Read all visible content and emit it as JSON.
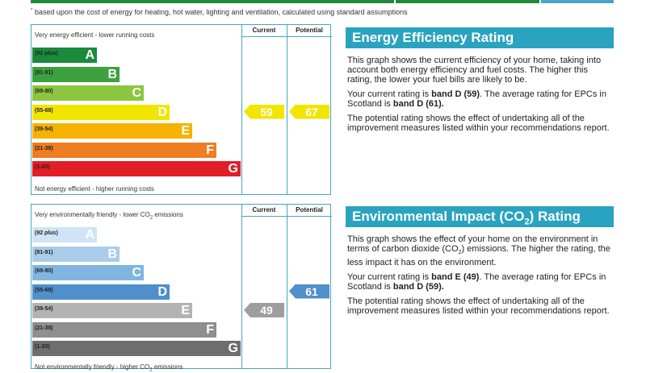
{
  "colors": {
    "accent": "#2aa3c0",
    "border": "#4aa3c8",
    "topbar": [
      "#1e8a3a",
      "#1e8a3a",
      "#4aa3c8"
    ]
  },
  "footnote": "based upon the cost of energy for heating, hot water, lighting and ventilation, calculated using standard assumptions",
  "footnote_mark": "*",
  "chart_data": [
    {
      "type": "bar",
      "title": "",
      "top_label": "Very energy efficient - lower running costs",
      "bottom_label": "Not energy efficient - higher running costs",
      "col_headers": [
        "Current",
        "Potential"
      ],
      "categories": [
        "A",
        "B",
        "C",
        "D",
        "E",
        "F",
        "G"
      ],
      "ranges": [
        "(92 plus)",
        "(81-91)",
        "(69-80)",
        "(55-68)",
        "(39-54)",
        "(21-38)",
        "(1-20)"
      ],
      "band_colors": [
        "#1a8a3c",
        "#3ca040",
        "#8cc63e",
        "#f2e500",
        "#f7b200",
        "#ef7d22",
        "#e21e26"
      ],
      "current": 59,
      "potential": 67,
      "current_color": "#f2e500",
      "potential_color": "#f2e500"
    },
    {
      "type": "bar",
      "title": "",
      "top_label": "Very environmentally friendly - lower CO",
      "top_label_suffix": "emissions",
      "bottom_label": "Not environmentally friendly - higher CO",
      "bottom_label_suffix": "emissions",
      "col_headers": [
        "Current",
        "Potential"
      ],
      "categories": [
        "A",
        "B",
        "C",
        "D",
        "E",
        "F",
        "G"
      ],
      "ranges": [
        "(92 plus)",
        "(81-91)",
        "(69-80)",
        "(55-68)",
        "(39-54)",
        "(21-38)",
        "(1-20)"
      ],
      "band_colors": [
        "#cfe4f4",
        "#a9cdea",
        "#7fb5e0",
        "#4f8fcb",
        "#b3b3b3",
        "#8f8f8f",
        "#6e6e6e"
      ],
      "current": 49,
      "potential": 61,
      "current_color": "#9e9e9e",
      "potential_color": "#4f8fcb"
    }
  ],
  "energy": {
    "header": "Energy Efficiency Rating",
    "p1": "This graph shows the current efficiency of your home, taking into account both energy efficiency and fuel costs. The higher this rating, the lower your fuel bills are likely to be.",
    "p2_pre": "Your current rating is ",
    "p2_band": "band D (59)",
    "p2_mid": ". The average rating for EPCs in Scotland is ",
    "p2_avg": "band D (61).",
    "p3": "The potential rating shows the effect of undertaking all of the improvement measures listed within your recommendations report."
  },
  "environment": {
    "header_pre": "Environmental Impact (CO",
    "header_sub": "2",
    "header_post": ") Rating",
    "p1_pre": "This graph shows the effect of your home on the environment in terms of carbon dioxide (CO",
    "p1_sub": "2",
    "p1_post": ") emissions. The higher the rating, the less impact it has on the environment.",
    "p2_pre": "Your current rating is ",
    "p2_band": "band E (49)",
    "p2_mid": ". The average rating for EPCs in Scotland is ",
    "p2_avg": "band D (59).",
    "p3": "The potential rating shows the effect of undertaking all of the improvement measures listed within your recommendations report."
  }
}
